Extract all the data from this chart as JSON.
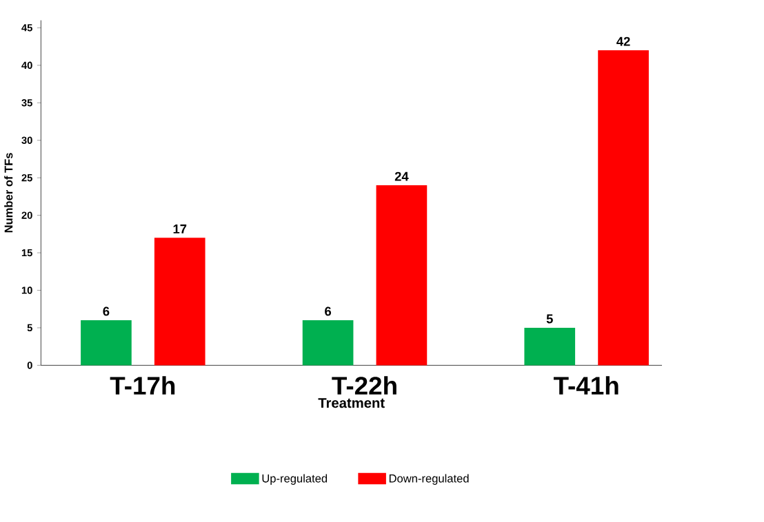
{
  "chart_data": {
    "type": "bar",
    "xlabel": "Treatment",
    "ylabel": "Number of TFs",
    "categories": [
      "T-17h",
      "T-22h",
      "T-41h"
    ],
    "series": [
      {
        "name": "Up-regulated",
        "color": "#00b050",
        "values": [
          6,
          6,
          5
        ]
      },
      {
        "name": "Down-regulated",
        "color": "#ff0000",
        "values": [
          17,
          24,
          42
        ]
      }
    ],
    "ylim": [
      0,
      46
    ],
    "yticks": [
      0,
      5,
      10,
      15,
      20,
      25,
      30,
      35,
      40,
      45
    ],
    "data_labels": true,
    "legend": "bottom",
    "grid": false
  }
}
